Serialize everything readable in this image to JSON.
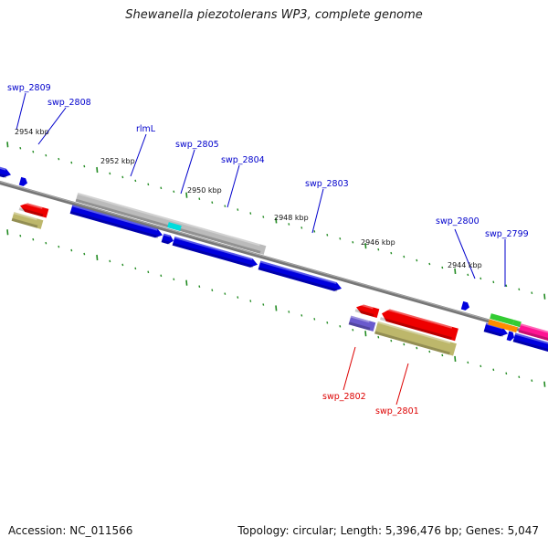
{
  "map": {
    "title": "Shewanella piezotolerans WP3, complete genome",
    "accession_text": "Accession: NC_011566",
    "topology_text": "Topology: circular; Length: 5,396,476 bp; Genes: 5,047",
    "scale_labels": [
      "2954 kbp",
      "2952 kbp",
      "2950 kbp",
      "2948 kbp",
      "2946 kbp",
      "2944 kbp"
    ],
    "forward_gene_labels": [
      "swp_2809",
      "swp_2808",
      "rlmL",
      "swp_2805",
      "swp_2804",
      "swp_2803",
      "swp_2800",
      "swp_2799"
    ],
    "reverse_gene_labels": [
      "swp_2802",
      "swp_2801"
    ],
    "colors": {
      "forward_label": "#0000cc",
      "reverse_label": "#dd0000",
      "forward_cds": "#0000dd",
      "reverse_cds": "#ee0000",
      "backbone": "#777777",
      "tick": "#228b22",
      "gray_track": "#bbbbbb",
      "khaki_track": "#bdb76b",
      "purple_track": "#6a5acd",
      "cyan_track": "#00dddd",
      "green_track": "#33cc33",
      "orange_track": "#ff8c00",
      "pink_track": "#ff1493"
    }
  }
}
